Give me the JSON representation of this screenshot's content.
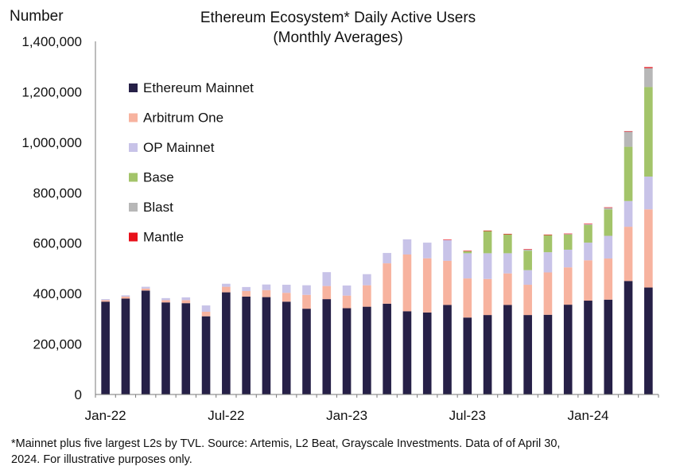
{
  "chart_data": {
    "type": "bar",
    "stacked": true,
    "title": "Ethereum Ecosystem* Daily Active Users",
    "subtitle": "(Monthly Averages)",
    "ylabel": "Number",
    "xlabel": "",
    "ylim": [
      0,
      1400000
    ],
    "yticks": [
      "0",
      "200,000",
      "400,000",
      "600,000",
      "800,000",
      "1,000,000",
      "1,200,000",
      "1,400,000"
    ],
    "xtick_labels": [
      "Jan-22",
      "Jul-22",
      "Jan-23",
      "Jul-23",
      "Jan-24"
    ],
    "legend_position": "upper-left",
    "grid": false,
    "categories": [
      "2022-01",
      "2022-02",
      "2022-03",
      "2022-04",
      "2022-05",
      "2022-06",
      "2022-07",
      "2022-08",
      "2022-09",
      "2022-10",
      "2022-11",
      "2022-12",
      "2023-01",
      "2023-02",
      "2023-03",
      "2023-04",
      "2023-05",
      "2023-06",
      "2023-07",
      "2023-08",
      "2023-09",
      "2023-10",
      "2023-11",
      "2023-12",
      "2024-01",
      "2024-02",
      "2024-03",
      "2024-04"
    ],
    "series": [
      {
        "name": "Ethereum Mainnet",
        "color": "#262047",
        "values": [
          368000,
          380000,
          412000,
          365000,
          362000,
          310000,
          405000,
          388000,
          386000,
          368000,
          340000,
          378000,
          342000,
          348000,
          360000,
          330000,
          325000,
          355000,
          305000,
          315000,
          355000,
          315000,
          316000,
          356000,
          372000,
          376000,
          450000,
          424000
        ]
      },
      {
        "name": "Arbitrum One",
        "color": "#F7B39F",
        "values": [
          6000,
          8000,
          8000,
          9000,
          12000,
          18000,
          22000,
          22000,
          28000,
          35000,
          55000,
          52000,
          50000,
          85000,
          160000,
          225000,
          215000,
          175000,
          155000,
          143000,
          125000,
          120000,
          168000,
          148000,
          160000,
          163000,
          215000,
          310000
        ]
      },
      {
        "name": "OP Mainnet",
        "color": "#C8C3E8",
        "values": [
          4000,
          5000,
          7000,
          8000,
          11000,
          25000,
          12000,
          16000,
          22000,
          32000,
          38000,
          55000,
          40000,
          44000,
          41000,
          60000,
          62000,
          82000,
          100000,
          102000,
          80000,
          58000,
          80000,
          70000,
          70000,
          90000,
          102000,
          130000
        ]
      },
      {
        "name": "Base",
        "color": "#A3C46A",
        "values": [
          0,
          0,
          0,
          0,
          0,
          0,
          0,
          0,
          0,
          0,
          0,
          0,
          0,
          0,
          0,
          0,
          0,
          0,
          8000,
          88000,
          75000,
          77000,
          68000,
          60000,
          70000,
          105000,
          215000,
          355000
        ]
      },
      {
        "name": "Blast",
        "color": "#B7B7B7",
        "values": [
          0,
          0,
          0,
          0,
          0,
          0,
          0,
          0,
          0,
          0,
          0,
          0,
          0,
          0,
          0,
          0,
          0,
          0,
          0,
          0,
          0,
          4000,
          0,
          2000,
          3000,
          6000,
          60000,
          75000
        ]
      },
      {
        "name": "Mantle",
        "color": "#E8101A",
        "values": [
          0,
          0,
          0,
          0,
          0,
          0,
          0,
          0,
          0,
          0,
          0,
          0,
          0,
          0,
          0,
          0,
          0,
          2000,
          2000,
          2000,
          2000,
          2000,
          2000,
          2000,
          2000,
          2000,
          2000,
          4000
        ]
      }
    ]
  },
  "footnote": {
    "line1": "*Mainnet plus five largest L2s by TVL. Source: Artemis, L2 Beat, Grayscale Investments. Data of of April 30,",
    "line2": "2024. For illustrative purposes only."
  }
}
